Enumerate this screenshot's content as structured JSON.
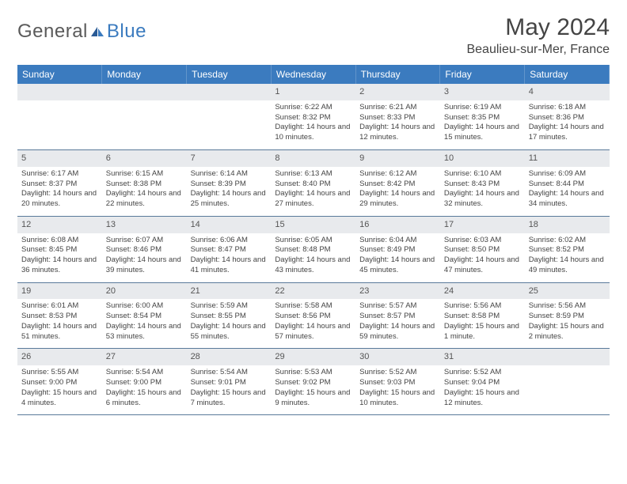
{
  "brand": {
    "general": "General",
    "blue": "Blue"
  },
  "title": {
    "month": "May 2024",
    "location": "Beaulieu-sur-Mer, France"
  },
  "colors": {
    "header_bg": "#3b7bbf",
    "header_text": "#ffffff",
    "daynum_bg": "#e8eaed",
    "row_border": "#5a7a9a",
    "text": "#444444",
    "logo_gray": "#5a5a5a",
    "logo_blue": "#3b7bbf",
    "page_bg": "#ffffff"
  },
  "fonts": {
    "family": "Arial",
    "title_size": 30,
    "location_size": 16,
    "weekday_size": 12,
    "daynum_size": 11,
    "body_size": 9.5
  },
  "weekdays": [
    "Sunday",
    "Monday",
    "Tuesday",
    "Wednesday",
    "Thursday",
    "Friday",
    "Saturday"
  ],
  "weeks": [
    [
      {
        "n": "",
        "sunrise": "",
        "sunset": "",
        "daylight": ""
      },
      {
        "n": "",
        "sunrise": "",
        "sunset": "",
        "daylight": ""
      },
      {
        "n": "",
        "sunrise": "",
        "sunset": "",
        "daylight": ""
      },
      {
        "n": "1",
        "sunrise": "Sunrise: 6:22 AM",
        "sunset": "Sunset: 8:32 PM",
        "daylight": "Daylight: 14 hours and 10 minutes."
      },
      {
        "n": "2",
        "sunrise": "Sunrise: 6:21 AM",
        "sunset": "Sunset: 8:33 PM",
        "daylight": "Daylight: 14 hours and 12 minutes."
      },
      {
        "n": "3",
        "sunrise": "Sunrise: 6:19 AM",
        "sunset": "Sunset: 8:35 PM",
        "daylight": "Daylight: 14 hours and 15 minutes."
      },
      {
        "n": "4",
        "sunrise": "Sunrise: 6:18 AM",
        "sunset": "Sunset: 8:36 PM",
        "daylight": "Daylight: 14 hours and 17 minutes."
      }
    ],
    [
      {
        "n": "5",
        "sunrise": "Sunrise: 6:17 AM",
        "sunset": "Sunset: 8:37 PM",
        "daylight": "Daylight: 14 hours and 20 minutes."
      },
      {
        "n": "6",
        "sunrise": "Sunrise: 6:15 AM",
        "sunset": "Sunset: 8:38 PM",
        "daylight": "Daylight: 14 hours and 22 minutes."
      },
      {
        "n": "7",
        "sunrise": "Sunrise: 6:14 AM",
        "sunset": "Sunset: 8:39 PM",
        "daylight": "Daylight: 14 hours and 25 minutes."
      },
      {
        "n": "8",
        "sunrise": "Sunrise: 6:13 AM",
        "sunset": "Sunset: 8:40 PM",
        "daylight": "Daylight: 14 hours and 27 minutes."
      },
      {
        "n": "9",
        "sunrise": "Sunrise: 6:12 AM",
        "sunset": "Sunset: 8:42 PM",
        "daylight": "Daylight: 14 hours and 29 minutes."
      },
      {
        "n": "10",
        "sunrise": "Sunrise: 6:10 AM",
        "sunset": "Sunset: 8:43 PM",
        "daylight": "Daylight: 14 hours and 32 minutes."
      },
      {
        "n": "11",
        "sunrise": "Sunrise: 6:09 AM",
        "sunset": "Sunset: 8:44 PM",
        "daylight": "Daylight: 14 hours and 34 minutes."
      }
    ],
    [
      {
        "n": "12",
        "sunrise": "Sunrise: 6:08 AM",
        "sunset": "Sunset: 8:45 PM",
        "daylight": "Daylight: 14 hours and 36 minutes."
      },
      {
        "n": "13",
        "sunrise": "Sunrise: 6:07 AM",
        "sunset": "Sunset: 8:46 PM",
        "daylight": "Daylight: 14 hours and 39 minutes."
      },
      {
        "n": "14",
        "sunrise": "Sunrise: 6:06 AM",
        "sunset": "Sunset: 8:47 PM",
        "daylight": "Daylight: 14 hours and 41 minutes."
      },
      {
        "n": "15",
        "sunrise": "Sunrise: 6:05 AM",
        "sunset": "Sunset: 8:48 PM",
        "daylight": "Daylight: 14 hours and 43 minutes."
      },
      {
        "n": "16",
        "sunrise": "Sunrise: 6:04 AM",
        "sunset": "Sunset: 8:49 PM",
        "daylight": "Daylight: 14 hours and 45 minutes."
      },
      {
        "n": "17",
        "sunrise": "Sunrise: 6:03 AM",
        "sunset": "Sunset: 8:50 PM",
        "daylight": "Daylight: 14 hours and 47 minutes."
      },
      {
        "n": "18",
        "sunrise": "Sunrise: 6:02 AM",
        "sunset": "Sunset: 8:52 PM",
        "daylight": "Daylight: 14 hours and 49 minutes."
      }
    ],
    [
      {
        "n": "19",
        "sunrise": "Sunrise: 6:01 AM",
        "sunset": "Sunset: 8:53 PM",
        "daylight": "Daylight: 14 hours and 51 minutes."
      },
      {
        "n": "20",
        "sunrise": "Sunrise: 6:00 AM",
        "sunset": "Sunset: 8:54 PM",
        "daylight": "Daylight: 14 hours and 53 minutes."
      },
      {
        "n": "21",
        "sunrise": "Sunrise: 5:59 AM",
        "sunset": "Sunset: 8:55 PM",
        "daylight": "Daylight: 14 hours and 55 minutes."
      },
      {
        "n": "22",
        "sunrise": "Sunrise: 5:58 AM",
        "sunset": "Sunset: 8:56 PM",
        "daylight": "Daylight: 14 hours and 57 minutes."
      },
      {
        "n": "23",
        "sunrise": "Sunrise: 5:57 AM",
        "sunset": "Sunset: 8:57 PM",
        "daylight": "Daylight: 14 hours and 59 minutes."
      },
      {
        "n": "24",
        "sunrise": "Sunrise: 5:56 AM",
        "sunset": "Sunset: 8:58 PM",
        "daylight": "Daylight: 15 hours and 1 minute."
      },
      {
        "n": "25",
        "sunrise": "Sunrise: 5:56 AM",
        "sunset": "Sunset: 8:59 PM",
        "daylight": "Daylight: 15 hours and 2 minutes."
      }
    ],
    [
      {
        "n": "26",
        "sunrise": "Sunrise: 5:55 AM",
        "sunset": "Sunset: 9:00 PM",
        "daylight": "Daylight: 15 hours and 4 minutes."
      },
      {
        "n": "27",
        "sunrise": "Sunrise: 5:54 AM",
        "sunset": "Sunset: 9:00 PM",
        "daylight": "Daylight: 15 hours and 6 minutes."
      },
      {
        "n": "28",
        "sunrise": "Sunrise: 5:54 AM",
        "sunset": "Sunset: 9:01 PM",
        "daylight": "Daylight: 15 hours and 7 minutes."
      },
      {
        "n": "29",
        "sunrise": "Sunrise: 5:53 AM",
        "sunset": "Sunset: 9:02 PM",
        "daylight": "Daylight: 15 hours and 9 minutes."
      },
      {
        "n": "30",
        "sunrise": "Sunrise: 5:52 AM",
        "sunset": "Sunset: 9:03 PM",
        "daylight": "Daylight: 15 hours and 10 minutes."
      },
      {
        "n": "31",
        "sunrise": "Sunrise: 5:52 AM",
        "sunset": "Sunset: 9:04 PM",
        "daylight": "Daylight: 15 hours and 12 minutes."
      },
      {
        "n": "",
        "sunrise": "",
        "sunset": "",
        "daylight": ""
      }
    ]
  ]
}
